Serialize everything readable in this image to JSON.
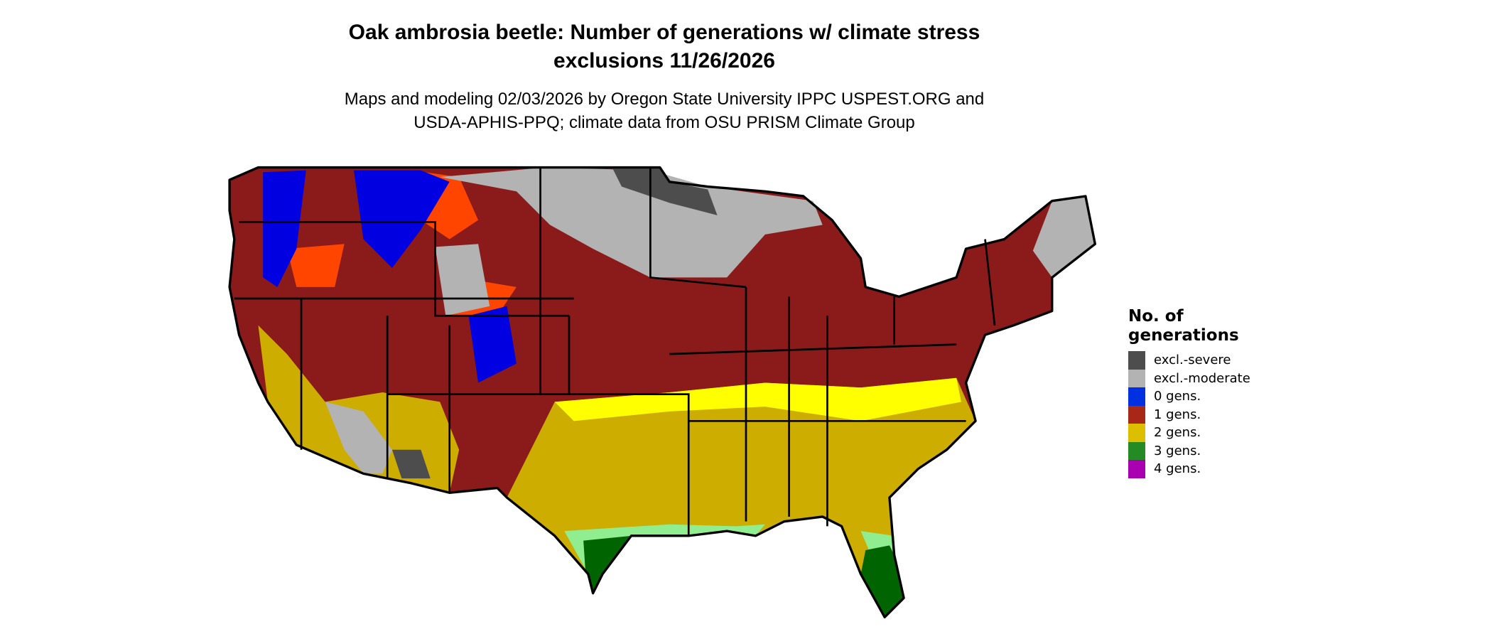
{
  "title": {
    "line1": "Oak ambrosia beetle: Number of generations w/ climate stress",
    "line2": "exclusions 11/26/2026"
  },
  "subtitle": {
    "line1": "Maps and modeling 02/03/2026 by Oregon State University IPPC USPEST.ORG and",
    "line2": "USDA-APHIS-PPQ; climate data from OSU PRISM Climate Group"
  },
  "map": {
    "region": "Contiguous United States",
    "colors": {
      "excl_severe": "#4d4d4d",
      "excl_moderate": "#b3b3b3",
      "gen0": "#0000e0",
      "gen1": "#8b1a1a",
      "gen1_light": "#ff4500",
      "gen2": "#cdad00",
      "gen2_light": "#ffff00",
      "gen3": "#006400",
      "gen3_light": "#90ee90",
      "border": "#000000"
    }
  },
  "legend": {
    "title_line1": "No. of",
    "title_line2": "generations",
    "items": [
      {
        "label": "excl.-severe",
        "color": "#4d4d4d"
      },
      {
        "label": "excl.-moderate",
        "color": "#b3b3b3"
      },
      {
        "label": "0 gens.",
        "color": "#0030e0"
      },
      {
        "label": "1 gens.",
        "color": "#a82818"
      },
      {
        "label": "2 gens.",
        "color": "#dcc000"
      },
      {
        "label": "3 gens.",
        "color": "#248a24"
      },
      {
        "label": "4 gens.",
        "color": "#a800b0"
      }
    ]
  }
}
